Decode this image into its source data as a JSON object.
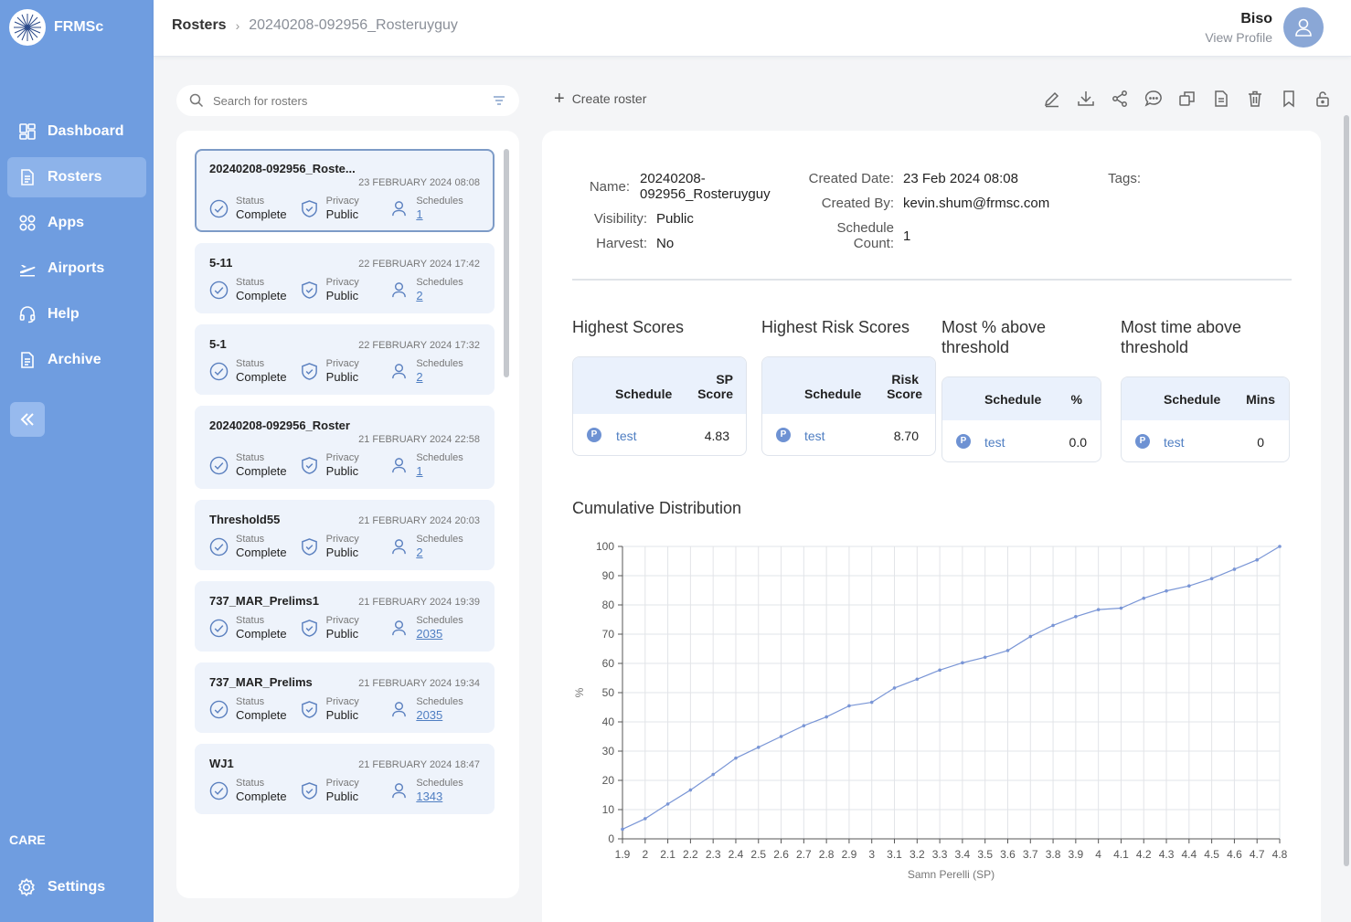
{
  "app": {
    "name": "FRMSc"
  },
  "sidebar": {
    "items": [
      {
        "label": "Dashboard",
        "icon": "dashboard-icon"
      },
      {
        "label": "Rosters",
        "icon": "document-icon",
        "active": true
      },
      {
        "label": "Apps",
        "icon": "apps-icon"
      },
      {
        "label": "Airports",
        "icon": "plane-icon"
      },
      {
        "label": "Help",
        "icon": "headset-icon"
      },
      {
        "label": "Archive",
        "icon": "archive-icon"
      }
    ],
    "section_label": "CARE",
    "settings_label": "Settings"
  },
  "header": {
    "breadcrumb_root": "Rosters",
    "breadcrumb_current": "20240208-092956_Rosteruyguy",
    "user_name": "Biso",
    "user_link": "View Profile"
  },
  "search": {
    "placeholder": "Search for rosters"
  },
  "toolbar": {
    "create_label": "Create roster"
  },
  "roster_labels": {
    "status": "Status",
    "privacy": "Privacy",
    "schedules": "Schedules"
  },
  "rosters": [
    {
      "name": "20240208-092956_Roste...",
      "date": "23 FEBRUARY 2024 08:08",
      "status": "Complete",
      "privacy": "Public",
      "schedules": "1",
      "selected": true,
      "wrap": true
    },
    {
      "name": "5-11",
      "date": "22 FEBRUARY 2024 17:42",
      "status": "Complete",
      "privacy": "Public",
      "schedules": "2"
    },
    {
      "name": "5-1",
      "date": "22 FEBRUARY 2024 17:32",
      "status": "Complete",
      "privacy": "Public",
      "schedules": "2"
    },
    {
      "name": "20240208-092956_Roster",
      "date": "21 FEBRUARY 2024 22:58",
      "status": "Complete",
      "privacy": "Public",
      "schedules": "1",
      "wrap": true
    },
    {
      "name": "Threshold55",
      "date": "21 FEBRUARY 2024 20:03",
      "status": "Complete",
      "privacy": "Public",
      "schedules": "2"
    },
    {
      "name": "737_MAR_Prelims1",
      "date": "21 FEBRUARY 2024 19:39",
      "status": "Complete",
      "privacy": "Public",
      "schedules": "2035"
    },
    {
      "name": "737_MAR_Prelims",
      "date": "21 FEBRUARY 2024 19:34",
      "status": "Complete",
      "privacy": "Public",
      "schedules": "2035"
    },
    {
      "name": "WJ1",
      "date": "21 FEBRUARY 2024 18:47",
      "status": "Complete",
      "privacy": "Public",
      "schedules": "1343"
    }
  ],
  "detail": {
    "name_label": "Name:",
    "name_line1": "20240208-",
    "name_line2": "092956_Rosteruyguy",
    "visibility_label": "Visibility:",
    "visibility": "Public",
    "harvest_label": "Harvest:",
    "harvest": "No",
    "created_date_label": "Created Date:",
    "created_date": "23 Feb 2024 08:08",
    "created_by_label": "Created By:",
    "created_by": "kevin.shum@frmsc.com",
    "schedule_count_label_1": "Schedule",
    "schedule_count_label_2": "Count:",
    "schedule_count": "1",
    "tags_label": "Tags:"
  },
  "score_tables": [
    {
      "title": "Highest Scores",
      "col1": "Schedule",
      "col2a": "SP",
      "col2b": "Score",
      "badge": "P",
      "schedule": "test",
      "value": "4.83"
    },
    {
      "title": "Highest Risk Scores",
      "col1": "Schedule",
      "col2a": "Risk",
      "col2b": "Score",
      "badge": "P",
      "schedule": "test",
      "value": "8.70"
    },
    {
      "title_a": "Most % above",
      "title_b": "threshold",
      "col1": "Schedule",
      "col2": "%",
      "badge": "P",
      "schedule": "test",
      "value": "0.0"
    },
    {
      "title_a": "Most time above",
      "title_b": "threshold",
      "col1": "Schedule",
      "col2": "Mins",
      "badge": "P",
      "schedule": "test",
      "value": "0"
    }
  ],
  "cumulative_title": "Cumulative Distribution",
  "chart_data": {
    "type": "line",
    "title": "",
    "xlabel": "Samn Perelli (SP)",
    "ylabel": "%",
    "x": [
      1.9,
      2.0,
      2.1,
      2.2,
      2.3,
      2.4,
      2.5,
      2.6,
      2.7,
      2.8,
      2.9,
      3.0,
      3.1,
      3.2,
      3.3,
      3.4,
      3.5,
      3.6,
      3.7,
      3.8,
      3.9,
      4.0,
      4.1,
      4.2,
      4.3,
      4.4,
      4.5,
      4.6,
      4.7,
      4.8
    ],
    "y": [
      3.3,
      6.9,
      11.9,
      16.7,
      22.0,
      27.6,
      31.3,
      35.0,
      38.7,
      41.7,
      45.5,
      46.7,
      51.6,
      54.6,
      57.7,
      60.2,
      62.1,
      64.4,
      69.2,
      73.0,
      76.0,
      78.4,
      78.9,
      82.3,
      84.8,
      86.5,
      89.0,
      92.2,
      95.4,
      100.0
    ],
    "xlim": [
      1.9,
      4.8
    ],
    "ylim": [
      0,
      100
    ],
    "x_ticks": [
      "1.9",
      "2",
      "2.1",
      "2.2",
      "2.3",
      "2.4",
      "2.5",
      "2.6",
      "2.7",
      "2.8",
      "2.9",
      "3",
      "3.1",
      "3.2",
      "3.3",
      "3.4",
      "3.5",
      "3.6",
      "3.7",
      "3.8",
      "3.9",
      "4",
      "4.1",
      "4.2",
      "4.3",
      "4.4",
      "4.5",
      "4.6",
      "4.7",
      "4.8"
    ],
    "y_ticks": [
      "0",
      "10",
      "20",
      "30",
      "40",
      "50",
      "60",
      "70",
      "80",
      "90",
      "100"
    ],
    "grid": true,
    "color": "#7a96d6"
  }
}
